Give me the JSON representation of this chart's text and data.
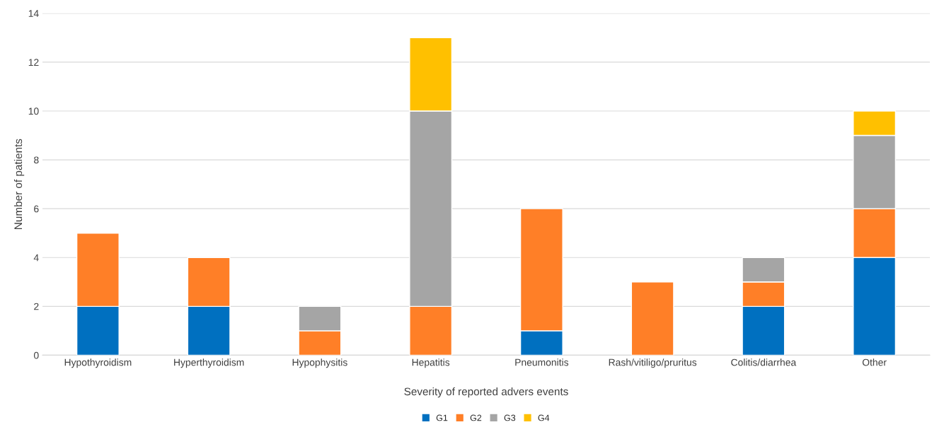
{
  "chart_data": {
    "type": "bar",
    "stacked": true,
    "xlabel": "Severity of reported advers events",
    "ylabel": "Number of patients",
    "categories": [
      "Hypothyroidism",
      "Hyperthyroidism",
      "Hypophysitis",
      "Hepatitis",
      "Pneumonitis",
      "Rash/vitiligo/pruritus",
      "Colitis/diarrhea",
      "Other"
    ],
    "series": [
      {
        "name": "G1",
        "color": "#0070c0",
        "values": [
          2,
          2,
          null,
          null,
          1,
          null,
          2,
          4
        ]
      },
      {
        "name": "G2",
        "color": "#ff7f27",
        "values": [
          3,
          2,
          1,
          2,
          5,
          3,
          1,
          2
        ]
      },
      {
        "name": "G3",
        "color": "#a5a5a5",
        "values": [
          null,
          null,
          1,
          8,
          null,
          null,
          1,
          3
        ]
      },
      {
        "name": "G4",
        "color": "#ffc000",
        "values": [
          null,
          null,
          null,
          3,
          null,
          null,
          null,
          1
        ]
      }
    ],
    "ylim": [
      0,
      14
    ],
    "yticks": [
      0,
      2,
      4,
      6,
      8,
      10,
      12,
      14
    ],
    "grid": "y",
    "legend": "bottom"
  }
}
